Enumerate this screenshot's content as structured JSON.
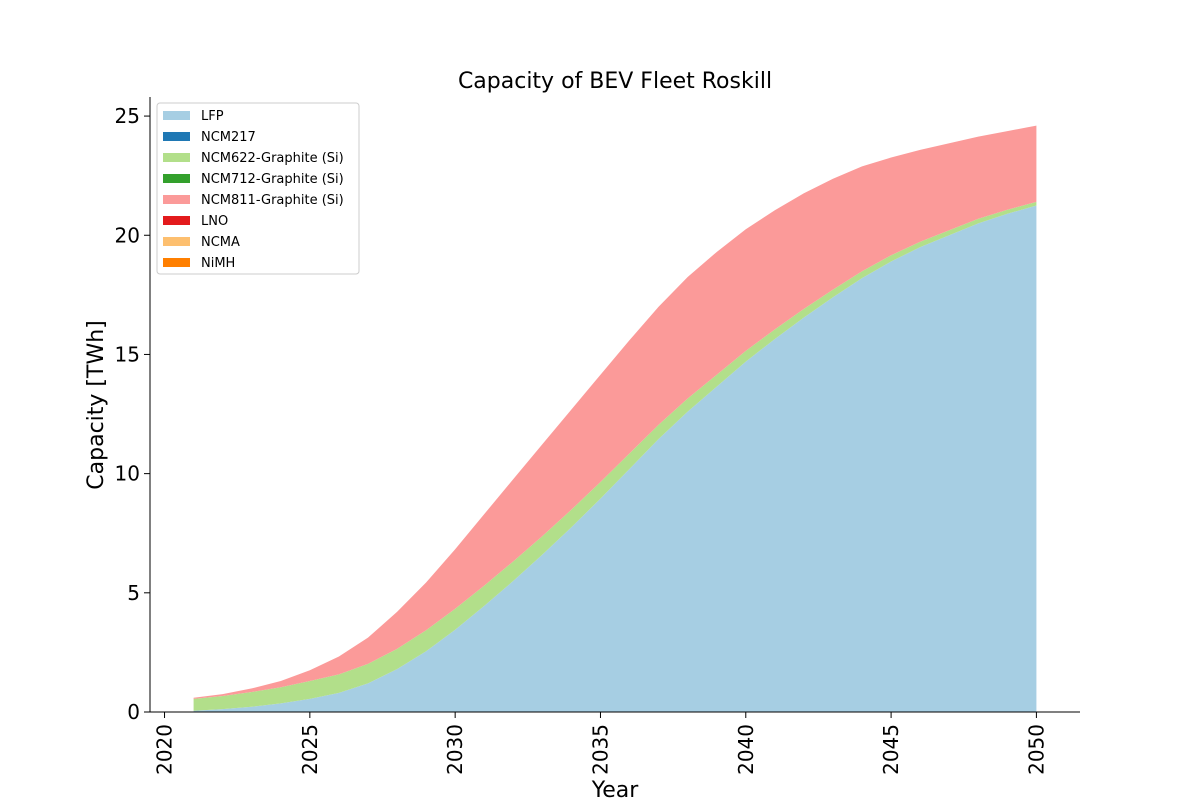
{
  "chart_data": {
    "type": "area",
    "stacked": true,
    "title": "Capacity of BEV Fleet Roskill",
    "xlabel": "Year",
    "ylabel": "Capacity [TWh]",
    "xlim": [
      2019.5,
      2051.5
    ],
    "ylim": [
      0,
      25.8
    ],
    "xticks": [
      2020,
      2025,
      2030,
      2035,
      2040,
      2045,
      2050
    ],
    "yticks": [
      0,
      5,
      10,
      15,
      20,
      25
    ],
    "grid": false,
    "legend_position": "top-left",
    "x": [
      2021,
      2022,
      2023,
      2024,
      2025,
      2026,
      2027,
      2028,
      2029,
      2030,
      2031,
      2032,
      2033,
      2034,
      2035,
      2036,
      2037,
      2038,
      2039,
      2040,
      2041,
      2042,
      2043,
      2044,
      2045,
      2046,
      2047,
      2048,
      2049,
      2050
    ],
    "series": [
      {
        "name": "LFP",
        "color": "#a6cee3",
        "values": [
          0.05,
          0.12,
          0.22,
          0.36,
          0.55,
          0.8,
          1.2,
          1.8,
          2.55,
          3.45,
          4.45,
          5.5,
          6.6,
          7.75,
          8.95,
          10.2,
          11.45,
          12.6,
          13.65,
          14.7,
          15.65,
          16.55,
          17.4,
          18.2,
          18.9,
          19.5,
          20.0,
          20.5,
          20.9,
          21.25
        ]
      },
      {
        "name": "NCM217",
        "color": "#1f78b4",
        "values": [
          0,
          0,
          0,
          0,
          0,
          0,
          0,
          0,
          0,
          0,
          0,
          0,
          0,
          0,
          0,
          0,
          0,
          0,
          0,
          0,
          0,
          0,
          0,
          0,
          0,
          0,
          0,
          0,
          0,
          0
        ]
      },
      {
        "name": "NCM622-Graphite (Si)",
        "color": "#b2df8a",
        "values": [
          0.5,
          0.55,
          0.62,
          0.68,
          0.75,
          0.78,
          0.82,
          0.85,
          0.88,
          0.88,
          0.85,
          0.82,
          0.78,
          0.74,
          0.7,
          0.65,
          0.6,
          0.55,
          0.5,
          0.45,
          0.4,
          0.36,
          0.32,
          0.29,
          0.26,
          0.23,
          0.21,
          0.19,
          0.17,
          0.15
        ]
      },
      {
        "name": "NCM712-Graphite (Si)",
        "color": "#33a02c",
        "values": [
          0,
          0,
          0,
          0,
          0,
          0,
          0,
          0,
          0,
          0,
          0,
          0,
          0,
          0,
          0,
          0,
          0,
          0,
          0,
          0,
          0,
          0,
          0,
          0,
          0,
          0,
          0,
          0,
          0,
          0
        ]
      },
      {
        "name": "NCM811-Graphite (Si)",
        "color": "#fb9a99",
        "values": [
          0.05,
          0.08,
          0.15,
          0.26,
          0.45,
          0.75,
          1.1,
          1.55,
          2.0,
          2.5,
          3.0,
          3.45,
          3.85,
          4.2,
          4.5,
          4.75,
          4.95,
          5.1,
          5.15,
          5.1,
          5.0,
          4.85,
          4.65,
          4.4,
          4.1,
          3.85,
          3.65,
          3.45,
          3.3,
          3.2
        ]
      },
      {
        "name": "LNO",
        "color": "#e31a1c",
        "values": [
          0,
          0,
          0,
          0,
          0,
          0,
          0,
          0,
          0,
          0,
          0,
          0,
          0,
          0,
          0,
          0,
          0,
          0,
          0,
          0,
          0,
          0,
          0,
          0,
          0,
          0,
          0,
          0,
          0,
          0
        ]
      },
      {
        "name": "NCMA",
        "color": "#fdbf6f",
        "values": [
          0,
          0,
          0,
          0,
          0,
          0,
          0,
          0,
          0,
          0,
          0,
          0,
          0,
          0,
          0,
          0,
          0,
          0,
          0,
          0,
          0,
          0,
          0,
          0,
          0,
          0,
          0,
          0,
          0,
          0
        ]
      },
      {
        "name": "NiMH",
        "color": "#ff7f00",
        "values": [
          0,
          0,
          0,
          0,
          0,
          0,
          0,
          0,
          0,
          0,
          0,
          0,
          0,
          0,
          0,
          0,
          0,
          0,
          0,
          0,
          0,
          0,
          0,
          0,
          0,
          0,
          0,
          0,
          0,
          0
        ]
      }
    ]
  }
}
